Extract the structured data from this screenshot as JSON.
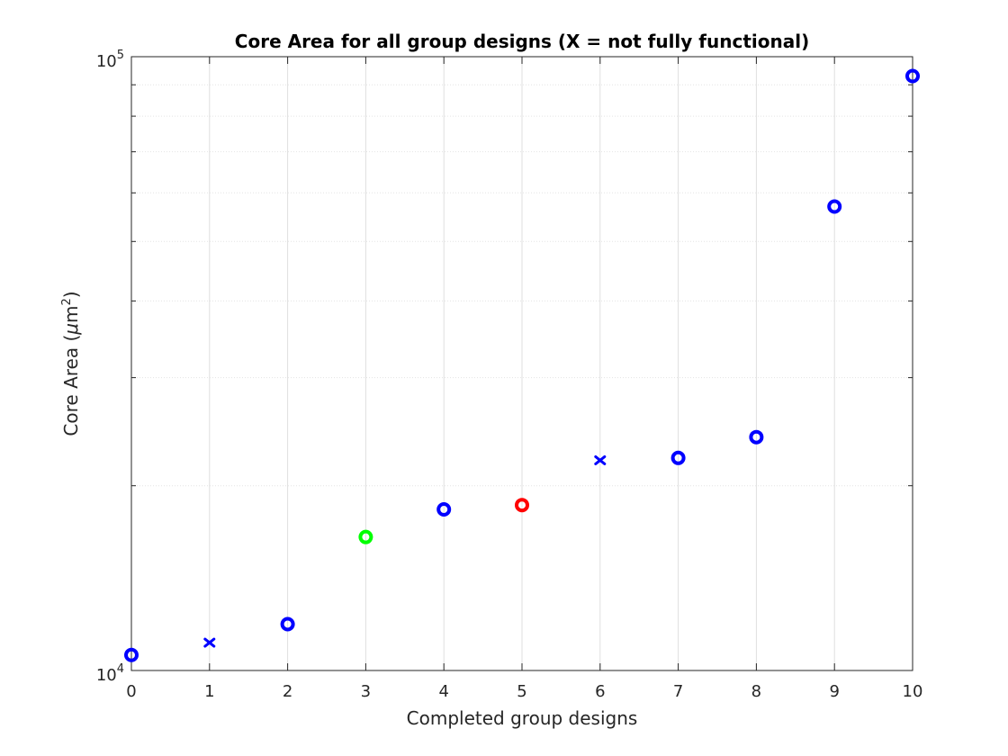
{
  "chart_data": {
    "type": "scatter",
    "title": "Core Area for all group designs (X = not fully functional)",
    "xlabel": "Completed group designs",
    "ylabel_main": "Core Area (",
    "ylabel_mu": "μ",
    "ylabel_unit": "m",
    "ylabel_exp": "2",
    "ylabel_close": ")",
    "xlim": [
      0,
      10
    ],
    "ylim": [
      10000,
      100000
    ],
    "yscale": "log",
    "grid": true,
    "x_ticks": [
      0,
      1,
      2,
      3,
      4,
      5,
      6,
      7,
      8,
      9,
      10
    ],
    "y_ticks": [
      {
        "value": 10000,
        "base": "10",
        "exp": "4"
      },
      {
        "value": 100000,
        "base": "10",
        "exp": "5"
      }
    ],
    "points": [
      {
        "x": 0,
        "y": 10600,
        "marker": "o",
        "color": "#0000ff"
      },
      {
        "x": 1,
        "y": 11100,
        "marker": "x",
        "color": "#0000ff"
      },
      {
        "x": 2,
        "y": 11900,
        "marker": "o",
        "color": "#0000ff"
      },
      {
        "x": 3,
        "y": 16500,
        "marker": "o",
        "color": "#00ff00"
      },
      {
        "x": 4,
        "y": 18300,
        "marker": "o",
        "color": "#0000ff"
      },
      {
        "x": 5,
        "y": 18600,
        "marker": "o",
        "color": "#ff0000"
      },
      {
        "x": 6,
        "y": 22000,
        "marker": "x",
        "color": "#0000ff"
      },
      {
        "x": 7,
        "y": 22200,
        "marker": "o",
        "color": "#0000ff"
      },
      {
        "x": 8,
        "y": 24000,
        "marker": "o",
        "color": "#0000ff"
      },
      {
        "x": 9,
        "y": 57000,
        "marker": "o",
        "color": "#0000ff"
      },
      {
        "x": 10,
        "y": 93000,
        "marker": "o",
        "color": "#0000ff"
      }
    ]
  }
}
